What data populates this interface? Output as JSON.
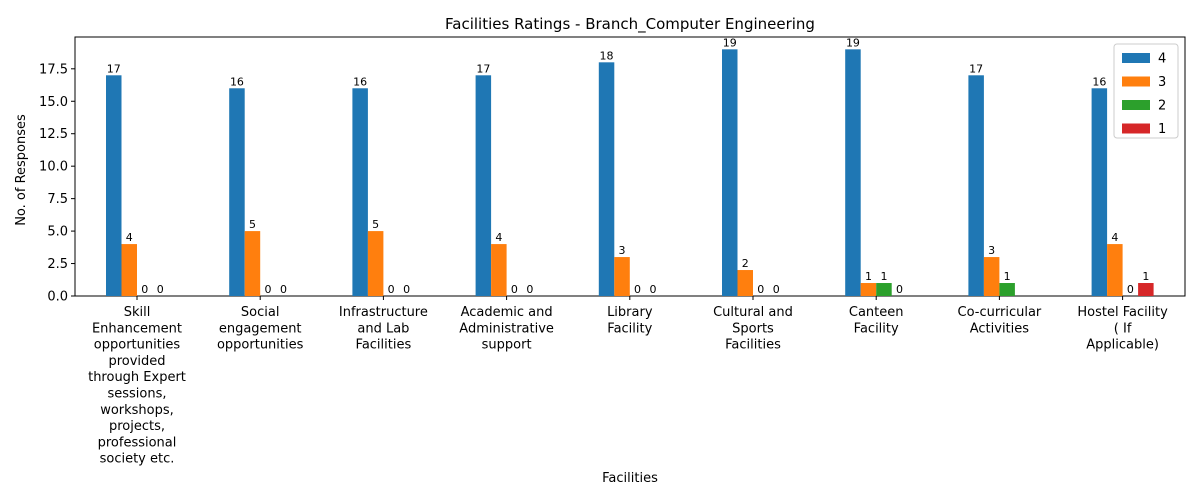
{
  "chart_data": {
    "type": "bar",
    "title": "Facilities Ratings - Branch_Computer Engineering",
    "xlabel": "Facilities",
    "ylabel": "No. of Responses",
    "ylim": [
      0,
      19.95
    ],
    "yticks": [
      0.0,
      2.5,
      5.0,
      7.5,
      10.0,
      12.5,
      15.0,
      17.5
    ],
    "ytick_labels": [
      "0.0",
      "2.5",
      "5.0",
      "7.5",
      "10.0",
      "12.5",
      "15.0",
      "17.5"
    ],
    "grid": false,
    "legend_position": "top-right",
    "categories": [
      "Skill Enhancement opportunities provided through Expert sessions, workshops, projects, professional society etc.",
      "Social engagement opportunities",
      "Infrastructure and Lab Facilities",
      "Academic and Administrative support",
      "Library Facility",
      "Cultural and Sports Facilities",
      "Canteen Facility",
      "Co-curricular Activities",
      "Hostel Facility ( If Applicable)"
    ],
    "category_lines": [
      [
        "Skill",
        "Enhancement",
        "opportunities",
        "provided",
        "through Expert",
        "sessions,",
        "workshops,",
        "projects,",
        "professional",
        "society etc."
      ],
      [
        "Social",
        "engagement",
        "opportunities"
      ],
      [
        "Infrastructure",
        "and Lab",
        "Facilities"
      ],
      [
        "Academic and",
        "Administrative",
        "support"
      ],
      [
        "Library",
        "Facility"
      ],
      [
        "Cultural and",
        "Sports",
        "Facilities"
      ],
      [
        "Canteen",
        "Facility"
      ],
      [
        "Co-curricular",
        "Activities"
      ],
      [
        "Hostel Facility",
        "( If",
        "Applicable)"
      ]
    ],
    "series": [
      {
        "name": "4",
        "color": "#1f77b4",
        "values": [
          17,
          16,
          16,
          17,
          18,
          19,
          19,
          17,
          16
        ],
        "labels": [
          17,
          16,
          16,
          17,
          18,
          19,
          19,
          17,
          16
        ]
      },
      {
        "name": "3",
        "color": "#ff7f0e",
        "values": [
          4,
          5,
          5,
          4,
          3,
          2,
          1,
          3,
          4
        ],
        "labels": [
          4,
          5,
          5,
          4,
          3,
          2,
          1,
          3,
          4
        ]
      },
      {
        "name": "2",
        "color": "#2ca02c",
        "values": [
          0,
          0,
          0,
          0,
          0,
          0,
          1,
          1,
          0
        ],
        "labels": [
          0,
          0,
          0,
          0,
          0,
          0,
          1,
          1,
          0
        ]
      },
      {
        "name": "1",
        "color": "#d62728",
        "values": [
          0,
          0,
          0,
          0,
          0,
          0,
          0,
          0,
          1
        ],
        "labels": [
          0,
          0,
          0,
          0,
          0,
          0,
          0,
          null,
          1
        ]
      }
    ]
  }
}
